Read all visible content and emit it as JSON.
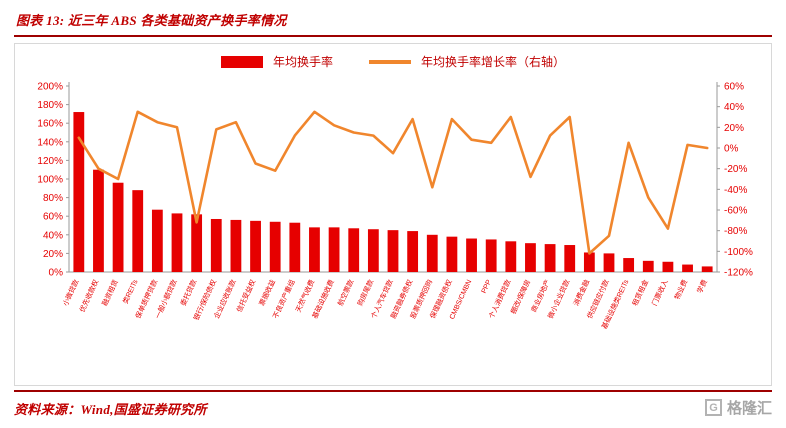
{
  "title": "图表 13: 近三年 ABS 各类基础资产换手率情况",
  "source": "资料来源：Wind,国盛证券研究所",
  "watermark": {
    "icon": "G",
    "text": "格隆汇"
  },
  "legend": {
    "bar": "年均换手率",
    "line": "年均换手率增长率（右轴）"
  },
  "colors": {
    "bar": "#e60000",
    "line": "#f0862d",
    "axis_text": "#e60000",
    "title": "#c00000",
    "rule": "#9e0000"
  },
  "chart_data": {
    "type": "bar",
    "title": "近三年 ABS 各类基础资产换手率情况",
    "grid": false,
    "legend_position": "top-center",
    "categories": [
      "小微贷款",
      "优先收款权",
      "融资租赁",
      "类REITs",
      "保单质押贷款",
      "一般小额贷款",
      "委托贷款",
      "银行/保险债权",
      "企业应收账款",
      "信托受益权",
      "票据收益",
      "不良资产重组",
      "天然气收费",
      "基础设施收费",
      "航空票款",
      "购房尾款",
      "个人汽车贷款",
      "融资融券债权",
      "股票质押回购",
      "保理融资债权",
      "CMBS/CMBN",
      "PPP",
      "个人消费贷款",
      "棚改/保障房",
      "商业房地产",
      "微小企业贷款",
      "消费金融",
      "供应链应付款",
      "基础设施类REITs",
      "租赁租金",
      "门票收入",
      "物业费",
      "学费"
    ],
    "series": [
      {
        "name": "年均换手率",
        "chart": "bar",
        "axis": "left",
        "color": "#e60000",
        "values": [
          172,
          110,
          96,
          88,
          67,
          63,
          62,
          57,
          56,
          55,
          54,
          53,
          48,
          48,
          47,
          46,
          45,
          44,
          40,
          38,
          36,
          35,
          33,
          31,
          30,
          29,
          21,
          20,
          15,
          12,
          11,
          8,
          6
        ]
      },
      {
        "name": "年均换手率增长率（右轴）",
        "chart": "line",
        "axis": "right",
        "color": "#f0862d",
        "values": [
          10,
          -20,
          -30,
          35,
          25,
          20,
          -72,
          18,
          25,
          -15,
          -22,
          12,
          35,
          22,
          15,
          12,
          -5,
          28,
          -38,
          28,
          8,
          5,
          30,
          -28,
          12,
          30,
          -102,
          -85,
          5,
          -48,
          -78,
          3,
          0
        ]
      }
    ],
    "left_axis": {
      "min": 0,
      "max": 200,
      "step": 20,
      "format": "percent"
    },
    "right_axis": {
      "min": -120,
      "max": 60,
      "step": 20,
      "format": "percent"
    }
  }
}
